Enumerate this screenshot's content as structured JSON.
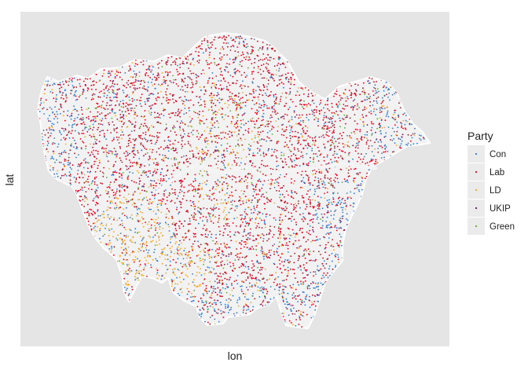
{
  "chart_data": {
    "type": "scatter",
    "title": "",
    "xlabel": "lon",
    "ylabel": "lat",
    "x_ticks_shown": false,
    "y_ticks_shown": false,
    "grid": false,
    "panel_color": "#e5e5e5",
    "legend": {
      "title": "Party",
      "position": "right",
      "entries": [
        {
          "name": "Con",
          "color": "#2b7bd6"
        },
        {
          "name": "Lab",
          "color": "#e3001b"
        },
        {
          "name": "LD",
          "color": "#f5a623"
        },
        {
          "name": "UKIP",
          "color": "#6b0a5a"
        },
        {
          "name": "Green",
          "color": "#5aa832"
        }
      ]
    },
    "series": [
      {
        "name": "Con",
        "color": "#2b7bd6"
      },
      {
        "name": "Lab",
        "color": "#e3001b"
      },
      {
        "name": "LD",
        "color": "#f5a623"
      },
      {
        "name": "UKIP",
        "color": "#6b0a5a"
      },
      {
        "name": "Green",
        "color": "#5aa832"
      }
    ]
  }
}
